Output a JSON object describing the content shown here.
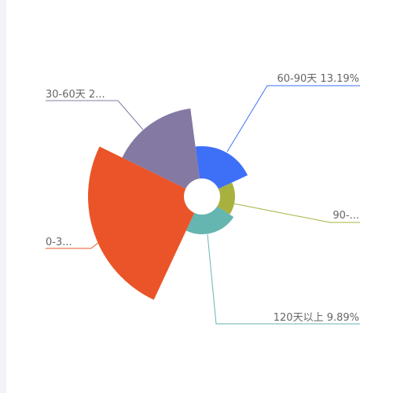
{
  "chart_data": {
    "type": "pie",
    "variant": "rose",
    "slices": [
      {
        "label": "60-90天",
        "percent_text": "13.19%",
        "value": 13.19,
        "color": "#3e6ff7",
        "display_label": "60-90天  13.19%"
      },
      {
        "label": "90-",
        "percent_text": "",
        "value": 5.5,
        "color": "#a8b13e",
        "display_label": "90-..."
      },
      {
        "label": "120天以上",
        "percent_text": "9.89%",
        "value": 9.89,
        "color": "#65b5b0",
        "display_label": "120天以上  9.89%"
      },
      {
        "label": "0-3",
        "percent_text": "",
        "value": 45.0,
        "color": "#ea5428",
        "display_label": "0-3..."
      },
      {
        "label": "30-60天",
        "percent_text": "2",
        "value": 26.4,
        "color": "#8479a3",
        "display_label": "30-60天  2..."
      }
    ]
  }
}
